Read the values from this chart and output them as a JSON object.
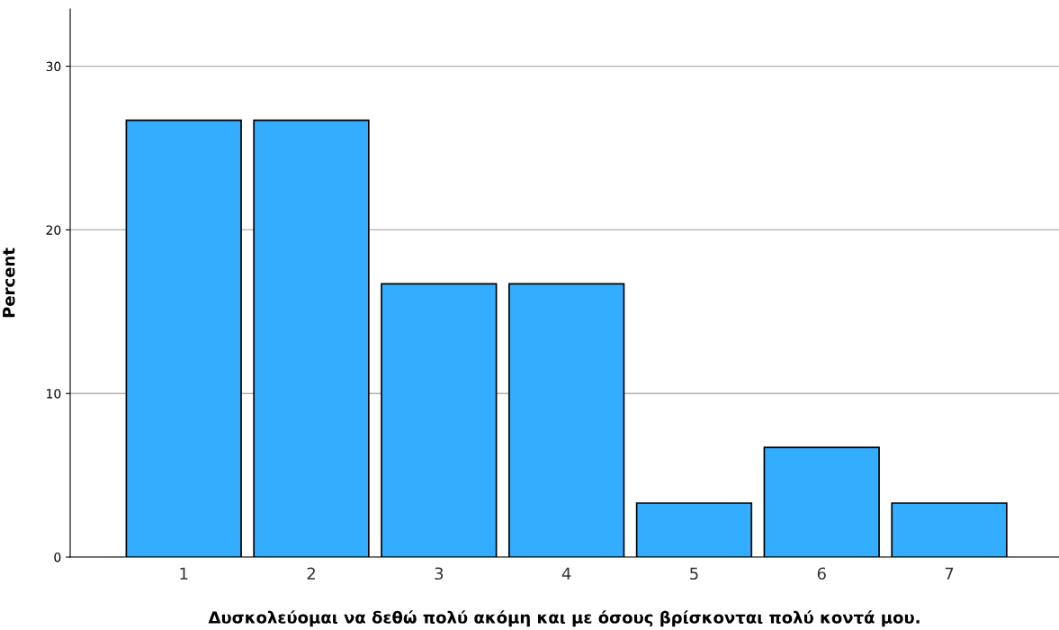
{
  "chart_data": {
    "type": "bar",
    "xlabel": "Δυσκολεύομαι να δεθώ πολύ ακόμη και με όσους βρίσκονται πολύ κοντά μου.",
    "ylabel": "Percent",
    "categories": [
      "1",
      "2",
      "3",
      "4",
      "5",
      "6",
      "7"
    ],
    "values": [
      26.7,
      26.7,
      16.7,
      16.7,
      3.3,
      6.7,
      3.3
    ],
    "color": "#33adff",
    "ylim": [
      0,
      33.5
    ],
    "yticks": [
      0,
      10,
      20,
      30
    ],
    "grid": "y",
    "legend": false
  }
}
